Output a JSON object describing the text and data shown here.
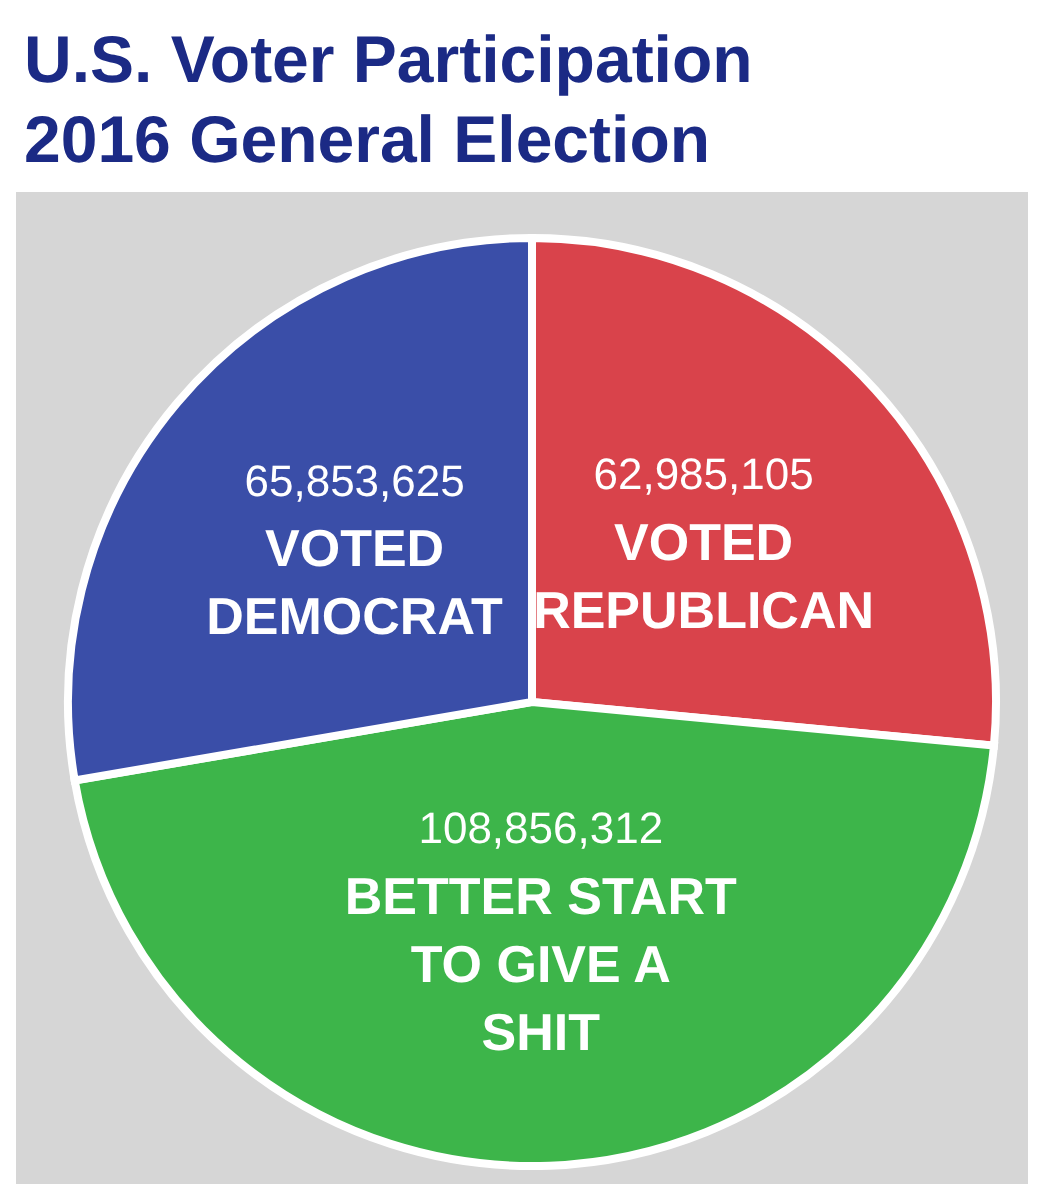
{
  "chart_data": {
    "type": "pie",
    "title": "U.S. Voter Participation 2016 General Election",
    "categories": [
      "VOTED REPUBLICAN",
      "BETTER START TO GIVE A SHIT",
      "VOTED DEMOCRAT"
    ],
    "values": [
      62985105,
      108856312,
      65853625
    ],
    "value_labels": [
      "62,985,105",
      "108,856,312",
      "65,853,625"
    ],
    "colors": [
      "#d9434b",
      "#3db54a",
      "#3a4ea8"
    ]
  }
}
